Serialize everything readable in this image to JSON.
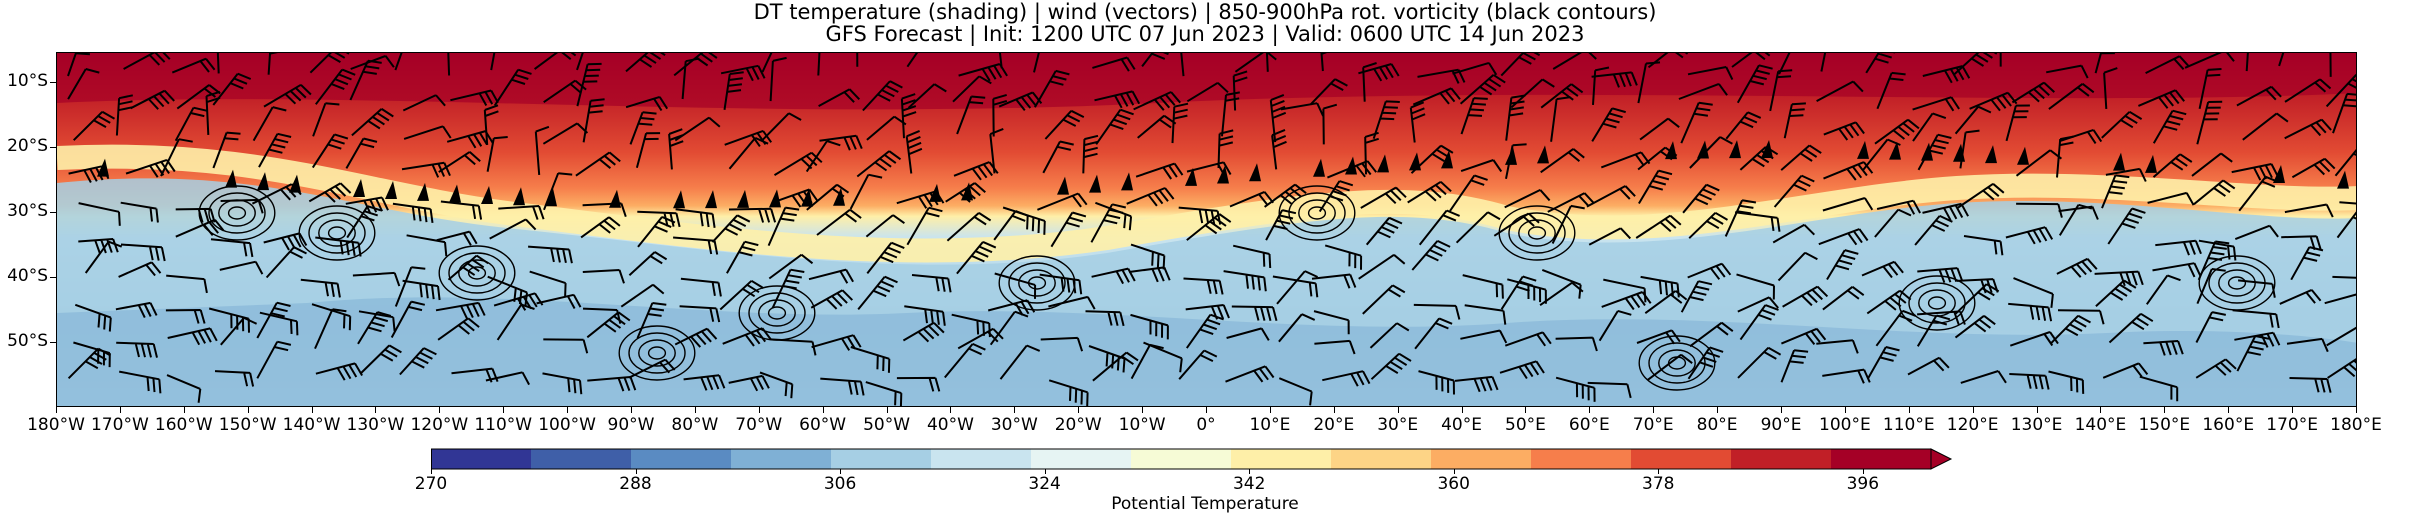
{
  "title_line1": "DT temperature (shading) | wind (vectors) | 850-900hPa rot. vorticity (black contours)",
  "title_line2": "GFS Forecast | Init: 1200 UTC 07 Jun 2023 | Valid: 0600 UTC 14 Jun 2023",
  "lat_labels": [
    "10°S",
    "20°S",
    "30°S",
    "40°S",
    "50°S"
  ],
  "lon_labels": [
    "180°W",
    "170°W",
    "160°W",
    "150°W",
    "140°W",
    "130°W",
    "120°W",
    "110°W",
    "100°W",
    "90°W",
    "80°W",
    "70°W",
    "60°W",
    "50°W",
    "40°W",
    "30°W",
    "20°W",
    "10°W",
    "0°",
    "10°E",
    "20°E",
    "30°E",
    "40°E",
    "50°E",
    "60°E",
    "70°E",
    "80°E",
    "90°E",
    "100°E",
    "110°E",
    "120°E",
    "130°E",
    "140°E",
    "150°E",
    "160°E",
    "170°E",
    "180°E"
  ],
  "colorbar": {
    "title": "Potential Temperature",
    "ticks": [
      "270",
      "288",
      "306",
      "324",
      "342",
      "360",
      "378",
      "396"
    ],
    "min": 270,
    "max": 402,
    "extend": "max",
    "colors": [
      "#313695",
      "#3f5fa8",
      "#5a8bc2",
      "#7fb0d5",
      "#a6cfe4",
      "#c9e4ef",
      "#e6f4f3",
      "#f6fbd6",
      "#feefa8",
      "#fdd486",
      "#fcad63",
      "#f67e4b",
      "#e24b33",
      "#c11f27",
      "#a50026"
    ]
  }
}
